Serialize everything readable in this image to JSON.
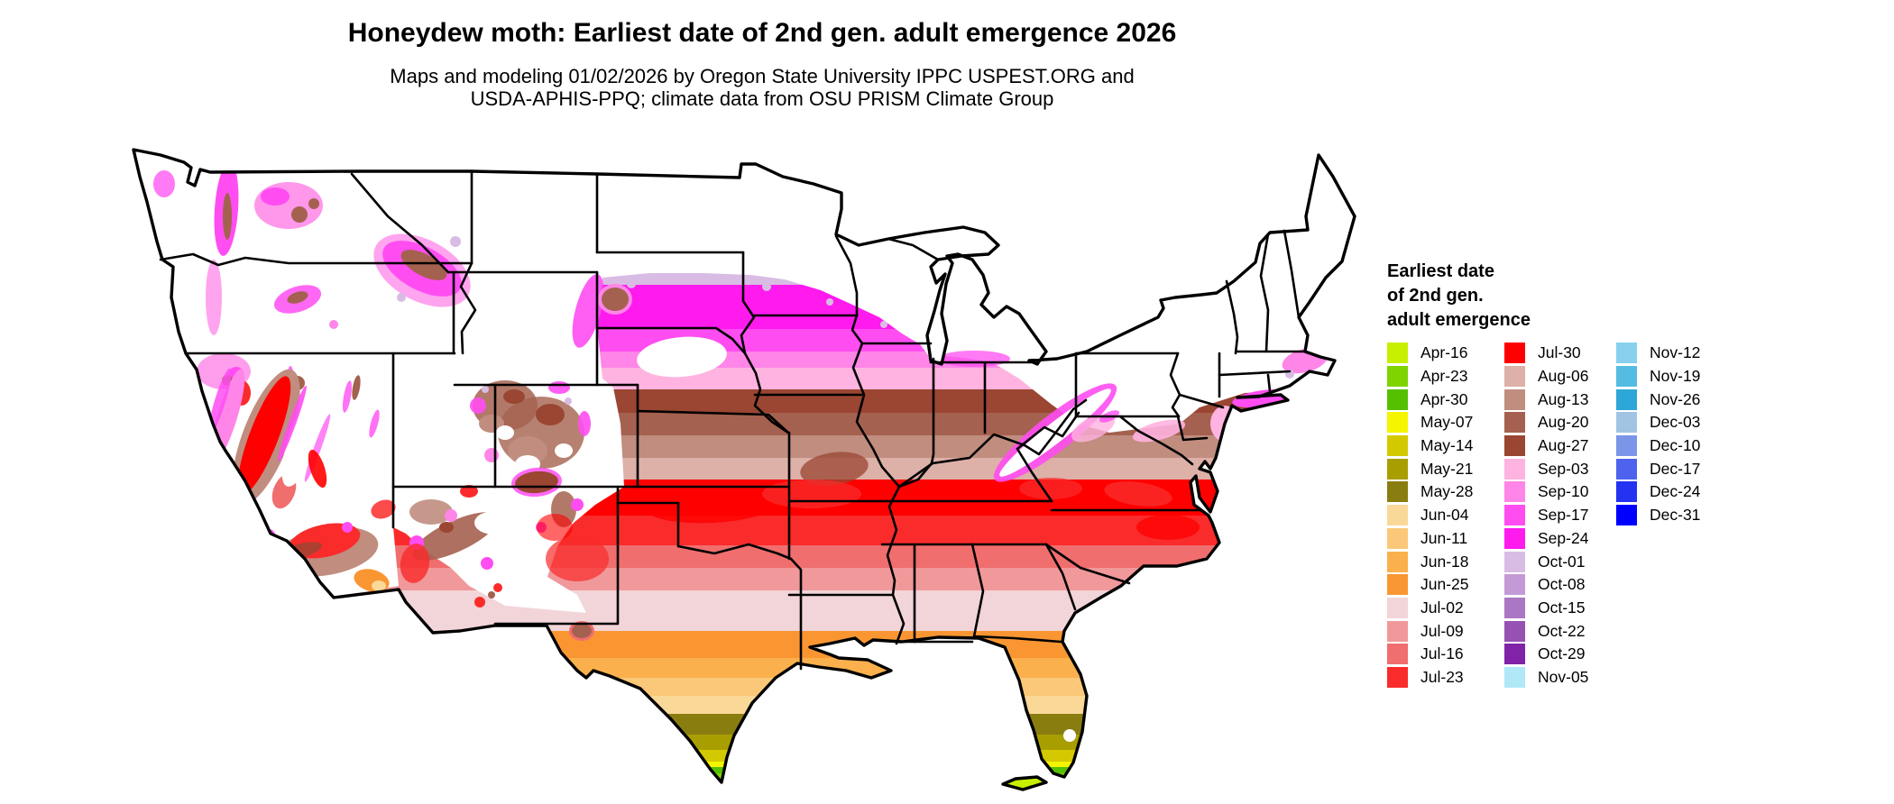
{
  "title": "Honeydew moth: Earliest date of 2nd gen. adult emergence 2026",
  "subtitle_line1": "Maps and modeling 01/02/2026 by Oregon State University IPPC USPEST.ORG and",
  "subtitle_line2": "USDA-APHIS-PPQ; climate data from OSU PRISM Climate Group",
  "legend": {
    "title_lines": [
      "Earliest date",
      "of 2nd gen.",
      "adult emergence"
    ],
    "columns": [
      [
        {
          "label": "Apr-16",
          "color": "#c7f000"
        },
        {
          "label": "Apr-23",
          "color": "#7fd400"
        },
        {
          "label": "Apr-30",
          "color": "#55c000"
        },
        {
          "label": "May-07",
          "color": "#f5f500"
        },
        {
          "label": "May-14",
          "color": "#d4c900"
        },
        {
          "label": "May-21",
          "color": "#a89e00"
        },
        {
          "label": "May-28",
          "color": "#8a7d10"
        },
        {
          "label": "Jun-04",
          "color": "#fad898"
        },
        {
          "label": "Jun-11",
          "color": "#fac878"
        },
        {
          "label": "Jun-18",
          "color": "#fab04d"
        },
        {
          "label": "Jun-25",
          "color": "#fa9632"
        },
        {
          "label": "Jul-02",
          "color": "#f2d5d8"
        },
        {
          "label": "Jul-09",
          "color": "#f0989a"
        },
        {
          "label": "Jul-16",
          "color": "#f06e6e"
        },
        {
          "label": "Jul-23",
          "color": "#fa2b2b"
        }
      ],
      [
        {
          "label": "Jul-30",
          "color": "#ff0000"
        },
        {
          "label": "Aug-06",
          "color": "#ddb0a8"
        },
        {
          "label": "Aug-13",
          "color": "#c08d7f"
        },
        {
          "label": "Aug-20",
          "color": "#a5614f"
        },
        {
          "label": "Aug-27",
          "color": "#9a4632"
        },
        {
          "label": "Sep-03",
          "color": "#ffb3e0"
        },
        {
          "label": "Sep-10",
          "color": "#ff85e8"
        },
        {
          "label": "Sep-17",
          "color": "#ff4df2"
        },
        {
          "label": "Sep-24",
          "color": "#ff1aee"
        },
        {
          "label": "Oct-01",
          "color": "#d9bce4"
        },
        {
          "label": "Oct-08",
          "color": "#c49ad6"
        },
        {
          "label": "Oct-15",
          "color": "#ab76c4"
        },
        {
          "label": "Oct-22",
          "color": "#9751b3"
        },
        {
          "label": "Oct-29",
          "color": "#8023a8"
        },
        {
          "label": "Nov-05",
          "color": "#b0e8f8"
        }
      ],
      [
        {
          "label": "Nov-12",
          "color": "#87d1ee"
        },
        {
          "label": "Nov-19",
          "color": "#56bbe2"
        },
        {
          "label": "Nov-26",
          "color": "#2da7d8"
        },
        {
          "label": "Dec-03",
          "color": "#a2c4e4"
        },
        {
          "label": "Dec-10",
          "color": "#7b95e8"
        },
        {
          "label": "Dec-17",
          "color": "#4d63ee"
        },
        {
          "label": "Dec-24",
          "color": "#2432f2"
        },
        {
          "label": "Dec-31",
          "color": "#0000ff"
        }
      ]
    ]
  }
}
